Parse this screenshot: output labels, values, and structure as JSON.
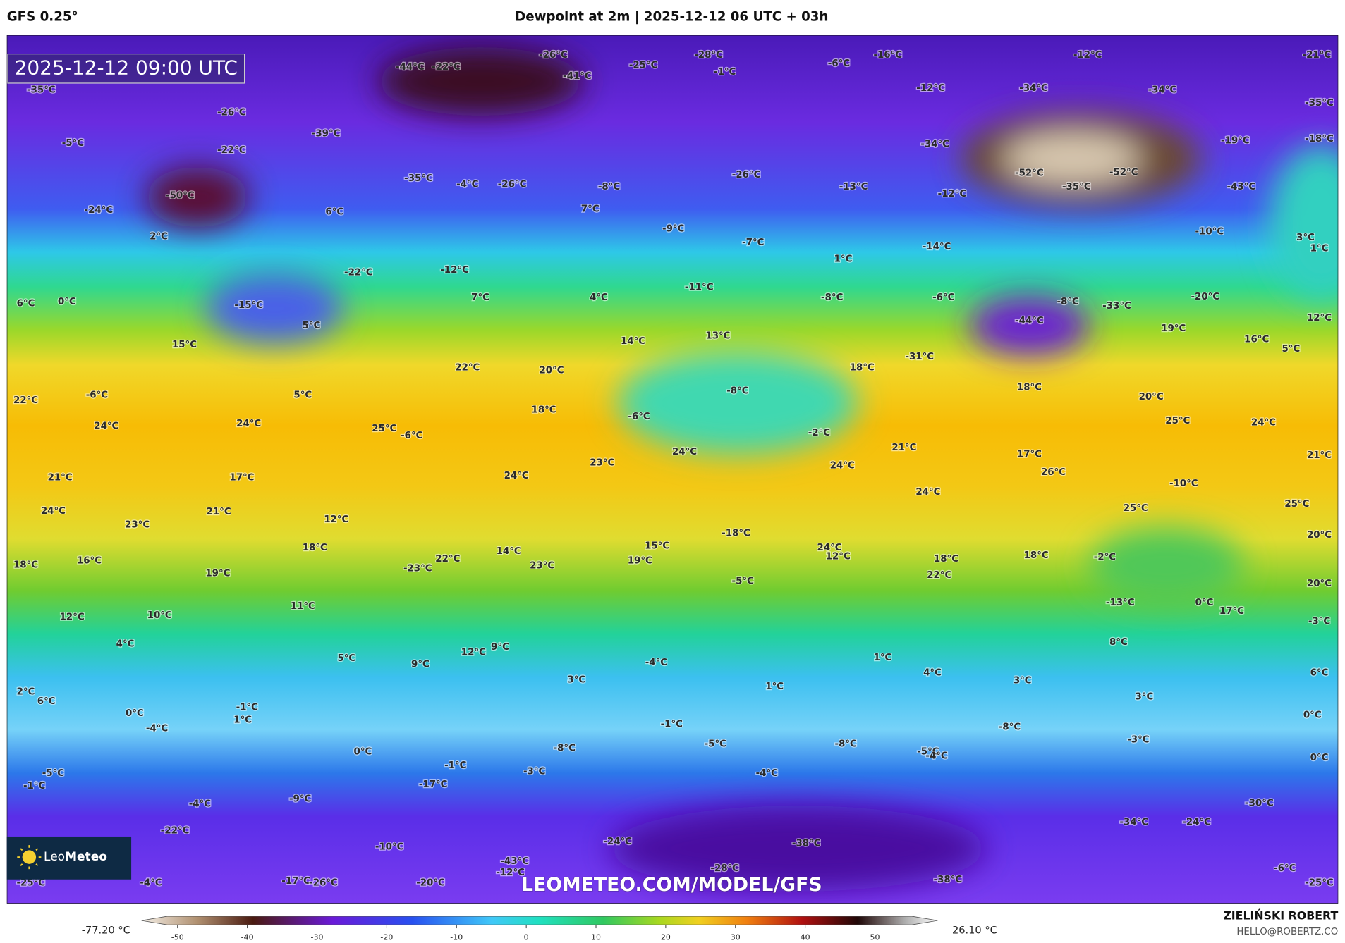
{
  "header": {
    "model": "GFS 0.25°",
    "title": "Dewpoint at 2m | 2025-12-12 06 UTC + 03h"
  },
  "map": {
    "timestamp": "2025-12-12 09:00 UTC",
    "watermark": "LEOMETEO.COM/MODEL/GFS",
    "logo": {
      "light": "Leo",
      "bold": "Meteo"
    },
    "labels": [
      "-35°C",
      "-5°C",
      "-24°C",
      "-50°C",
      "2°C",
      "-26°C",
      "-22°C",
      "-39°C",
      "-44°C",
      "-22°C",
      "-41°C",
      "-26°C",
      "-25°C",
      "-28°C",
      "-1°C",
      "-6°C",
      "-16°C",
      "-12°C",
      "-21°C",
      "-34°C",
      "-34°C",
      "-35°C",
      "-12°C",
      "-35°C",
      "-4°C",
      "-26°C",
      "-8°C",
      "7°C",
      "-26°C",
      "-13°C",
      "-12°C",
      "-34°C",
      "-52°C",
      "-35°C",
      "-52°C",
      "-19°C",
      "-18°C",
      "-43°C",
      "-10°C",
      "3°C",
      "1°C",
      "6°C",
      "-22°C",
      "-12°C",
      "6°C",
      "0°C",
      "-15°C",
      "5°C",
      "7°C",
      "4°C",
      "-9°C",
      "-7°C",
      "1°C",
      "-14°C",
      "-11°C",
      "-8°C",
      "-6°C",
      "-8°C",
      "-33°C",
      "-20°C",
      "12°C",
      "-44°C",
      "19°C",
      "16°C",
      "5°C",
      "15°C",
      "22°C",
      "20°C",
      "14°C",
      "13°C",
      "-31°C",
      "18°C",
      "-8°C",
      "18°C",
      "20°C",
      "25°C",
      "24°C",
      "21°C",
      "22°C",
      "-6°C",
      "5°C",
      "24°C",
      "24°C",
      "25°C",
      "-6°C",
      "18°C",
      "-6°C",
      "-2°C",
      "21°C",
      "17°C",
      "26°C",
      "-10°C",
      "24°C",
      "24°C",
      "23°C",
      "24°C",
      "21°C",
      "17°C",
      "24°C",
      "23°C",
      "21°C",
      "12°C",
      "24°C",
      "25°C",
      "25°C",
      "20°C",
      "18°C",
      "14°C",
      "15°C",
      "-18°C",
      "24°C",
      "12°C",
      "18°C",
      "18°C",
      "-2°C",
      "18°C",
      "16°C",
      "19°C",
      "-23°C",
      "22°C",
      "23°C",
      "19°C",
      "22°C",
      "20°C",
      "-5°C",
      "11°C",
      "-13°C",
      "0°C",
      "17°C",
      "12°C",
      "10°C",
      "-3°C",
      "4°C",
      "12°C",
      "9°C",
      "8°C",
      "5°C",
      "-4°C",
      "1°C",
      "9°C",
      "4°C",
      "6°C",
      "3°C",
      "1°C",
      "3°C",
      "2°C",
      "6°C",
      "3°C",
      "-1°C",
      "1°C",
      "0°C",
      "0°C",
      "-1°C",
      "-4°C",
      "-8°C",
      "-3°C",
      "0°C",
      "-8°C",
      "-5°C",
      "-8°C",
      "-5°C",
      "-4°C",
      "0°C",
      "-1°C",
      "-3°C",
      "-4°C",
      "-5°C",
      "-1°C",
      "-17°C",
      "-9°C",
      "-4°C",
      "-30°C",
      "-22°C",
      "-34°C",
      "-24°C",
      "-24°C",
      "-38°C",
      "-10°C",
      "-43°C",
      "-12°C",
      "-28°C",
      "-6°C",
      "-17°C",
      "-26°C",
      "-20°C",
      "-38°C",
      "-25°C",
      "-4°C",
      "-25°C"
    ]
  },
  "colorbar": {
    "min_label": "-77.20 °C",
    "max_label": "26.10 °C",
    "ticks": [
      -50,
      -40,
      -30,
      -20,
      -10,
      0,
      10,
      20,
      30,
      40,
      50
    ]
  },
  "credit": {
    "author": "ZIELIŃSKI ROBERT",
    "email": "HELLO@ROBERTZ.CO"
  }
}
